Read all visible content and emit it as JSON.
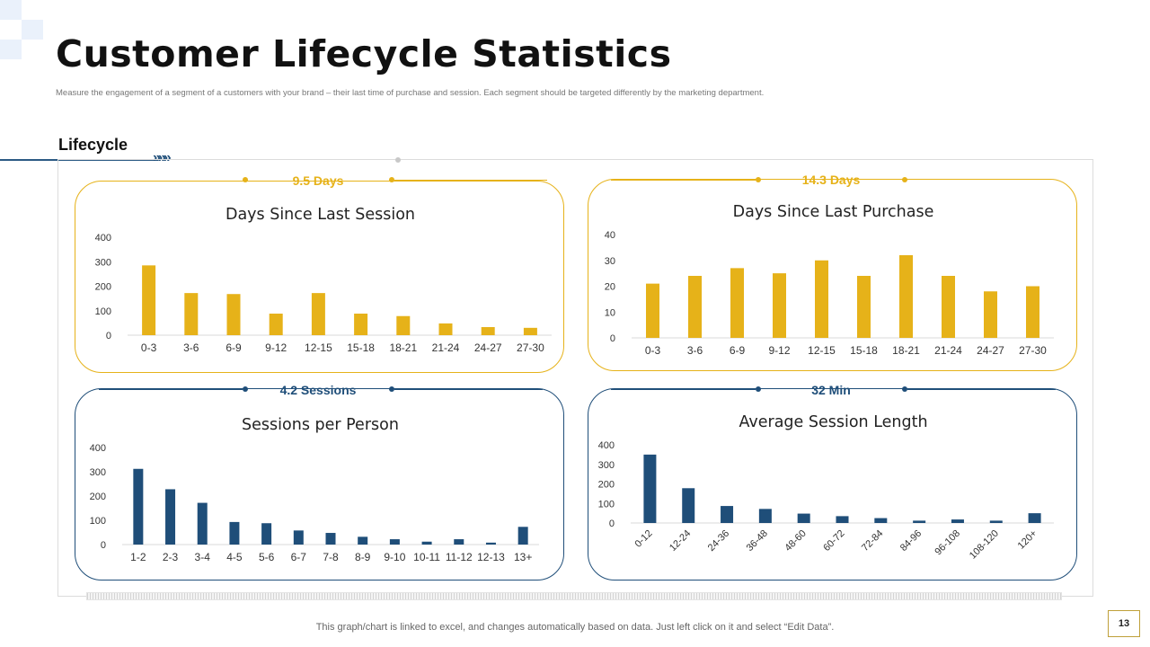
{
  "page": {
    "title": "Customer Lifecycle Statistics",
    "subtitle": "Measure the engagement of a segment of a customers with your brand – their last time of purchase and session. Each segment should be targeted differently by the marketing department.",
    "section_label": "Lifecycle",
    "footer_note": "This graph/chart is linked to excel,  and changes automatically based on data. Just left click on it and select “Edit Data”.",
    "page_number": "13"
  },
  "colors": {
    "gold": "#e6b219",
    "blue": "#1f4e79",
    "axis": "#d9d9d9",
    "text": "#222222"
  },
  "panels": [
    {
      "tag": "9.5 Days",
      "color": "gold"
    },
    {
      "tag": "14.3 Days",
      "color": "gold"
    },
    {
      "tag": "4.2 Sessions",
      "color": "blue"
    },
    {
      "tag": "32 Min",
      "color": "blue"
    }
  ],
  "chart_data": [
    {
      "type": "bar",
      "title": "Days Since Last Session",
      "categories": [
        "0-3",
        "3-6",
        "6-9",
        "9-12",
        "12-15",
        "15-18",
        "18-21",
        "21-24",
        "24-27",
        "27-30"
      ],
      "values": [
        285,
        172,
        168,
        88,
        172,
        88,
        78,
        48,
        33,
        30
      ],
      "ylim": [
        0,
        400
      ],
      "yticks": [
        0,
        100,
        200,
        300,
        400
      ],
      "xlabel": "",
      "ylabel": "",
      "color": "gold"
    },
    {
      "type": "bar",
      "title": "Days Since Last Purchase",
      "categories": [
        "0-3",
        "3-6",
        "6-9",
        "9-12",
        "12-15",
        "15-18",
        "18-21",
        "21-24",
        "24-27",
        "27-30"
      ],
      "values": [
        21,
        24,
        27,
        25,
        30,
        24,
        32,
        24,
        18,
        20
      ],
      "ylim": [
        0,
        40
      ],
      "yticks": [
        0,
        10,
        20,
        30,
        40
      ],
      "xlabel": "",
      "ylabel": "",
      "color": "gold"
    },
    {
      "type": "bar",
      "title": "Sessions per Person",
      "categories": [
        "1-2",
        "2-3",
        "3-4",
        "4-5",
        "5-6",
        "6-7",
        "7-8",
        "8-9",
        "9-10",
        "10-11",
        "11-12",
        "12-13",
        "13+"
      ],
      "values": [
        312,
        228,
        172,
        93,
        88,
        58,
        48,
        32,
        22,
        12,
        22,
        8,
        73
      ],
      "ylim": [
        0,
        400
      ],
      "yticks": [
        0,
        100,
        200,
        300,
        400
      ],
      "xlabel": "",
      "ylabel": "",
      "color": "blue"
    },
    {
      "type": "bar",
      "title": "Average Session Length",
      "categories": [
        "0-12",
        "12-24",
        "24-36",
        "36-48",
        "48-60",
        "60-72",
        "72-84",
        "84-96",
        "96-108",
        "108-120",
        "120+"
      ],
      "values": [
        350,
        178,
        87,
        72,
        48,
        35,
        25,
        12,
        18,
        12,
        50
      ],
      "ylim": [
        0,
        400
      ],
      "yticks": [
        0,
        100,
        200,
        300,
        400
      ],
      "xlabel": "",
      "ylabel": "",
      "color": "blue"
    }
  ]
}
